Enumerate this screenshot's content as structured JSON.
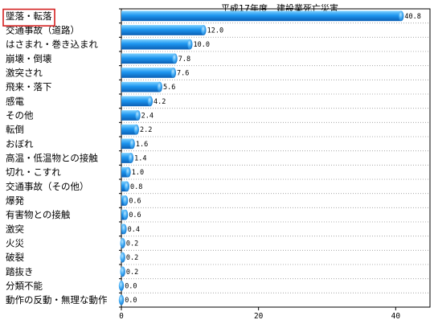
{
  "chart_data": {
    "type": "bar",
    "orientation": "horizontal",
    "title": "平成17年度　建設業死亡災害",
    "categories": [
      "墜落・転落",
      "交通事故（道路）",
      "はさまれ・巻き込まれ",
      "崩壊・倒壊",
      "激突され",
      "飛来・落下",
      "感電",
      "その他",
      "転倒",
      "おぼれ",
      "高温・低温物との接触",
      "切れ・こすれ",
      "交通事故（その他）",
      "爆発",
      "有害物との接触",
      "激突",
      "火災",
      "破裂",
      "踏抜き",
      "分類不能",
      "動作の反動・無理な動作"
    ],
    "values": [
      40.8,
      12.0,
      10.0,
      7.8,
      7.6,
      5.6,
      4.2,
      2.4,
      2.2,
      1.6,
      1.4,
      1.0,
      0.8,
      0.6,
      0.6,
      0.4,
      0.2,
      0.2,
      0.2,
      0.0,
      0.0
    ],
    "value_labels": [
      "40.8",
      "12.0",
      "10.0",
      "7.8",
      "7.6",
      "5.6",
      "4.2",
      "2.4",
      "2.2",
      "1.6",
      "1.4",
      "1.0",
      "0.8",
      "0.6",
      "0.6",
      "0.4",
      "0.2",
      "0.2",
      "0.2",
      "0.0",
      "0.0"
    ],
    "xlim": [
      0,
      45
    ],
    "xticks": [
      0,
      20,
      40
    ],
    "xtick_labels": [
      "0",
      "20",
      "40"
    ],
    "xlabel": "",
    "ylabel": "",
    "grid": "horizontal dotted lines between categories",
    "highlighted_category": "墜落・転落",
    "colors": {
      "bar_light": "#7fd2ff",
      "bar_mid": "#1e96f0",
      "bar_dark": "#0a5fb4",
      "highlight_box": "#d42020",
      "axis": "#000000",
      "grid": "#999999"
    }
  }
}
